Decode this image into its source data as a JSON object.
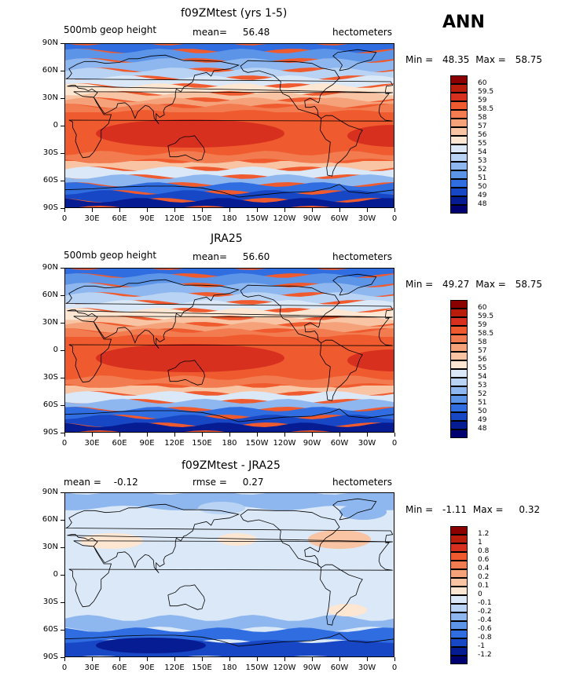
{
  "figure_label": "ANN",
  "lat_labels": [
    "90N",
    "60N",
    "30N",
    "0",
    "30S",
    "60S",
    "90S"
  ],
  "lon_labels": [
    "0",
    "30E",
    "60E",
    "90E",
    "120E",
    "150E",
    "180",
    "150W",
    "120W",
    "90W",
    "60W",
    "30W",
    "0"
  ],
  "panels": [
    {
      "title": "f09ZMtest (yrs 1-5)",
      "left": "500mb geop height",
      "center_label": "mean=",
      "center_value": "56.48",
      "right": "hectometers",
      "min_label": "Min =",
      "min_value": "48.35",
      "max_label": "Max =",
      "max_value": "58.75",
      "levels": [
        "60",
        "59.5",
        "59",
        "58.5",
        "58",
        "57",
        "56",
        "55",
        "54",
        "53",
        "52",
        "51",
        "50",
        "49",
        "48"
      ]
    },
    {
      "title": "JRA25",
      "left": "500mb geop height",
      "center_label": "mean=",
      "center_value": "56.60",
      "right": "hectometers",
      "min_label": "Min =",
      "min_value": "49.27",
      "max_label": "Max =",
      "max_value": "58.75",
      "levels": [
        "60",
        "59.5",
        "59",
        "58.5",
        "58",
        "57",
        "56",
        "55",
        "54",
        "53",
        "52",
        "51",
        "50",
        "49",
        "48"
      ]
    },
    {
      "title": "f09ZMtest - JRA25",
      "left": "mean =",
      "left_value": "-0.12",
      "center_label": "rmse =",
      "center_value": "0.27",
      "right": "hectometers",
      "min_label": "Min =",
      "min_value": "-1.11",
      "max_label": "Max =",
      "max_value": "0.32",
      "levels": [
        "1.2",
        "1",
        "0.8",
        "0.6",
        "0.4",
        "0.2",
        "0.1",
        "0",
        "-0.1",
        "-0.2",
        "-0.4",
        "-0.6",
        "-0.8",
        "-1",
        "-1.2"
      ]
    }
  ],
  "colors": {
    "scale": [
      "#8b0000",
      "#b81d0c",
      "#d7301f",
      "#ef5a2e",
      "#f27b4f",
      "#f5a27a",
      "#f9c4a3",
      "#fde6d2",
      "#dbe8f7",
      "#b9d3f4",
      "#8fb7ef",
      "#5c95e8",
      "#2f6de0",
      "#1747c4",
      "#061c93",
      "#000070"
    ]
  }
}
